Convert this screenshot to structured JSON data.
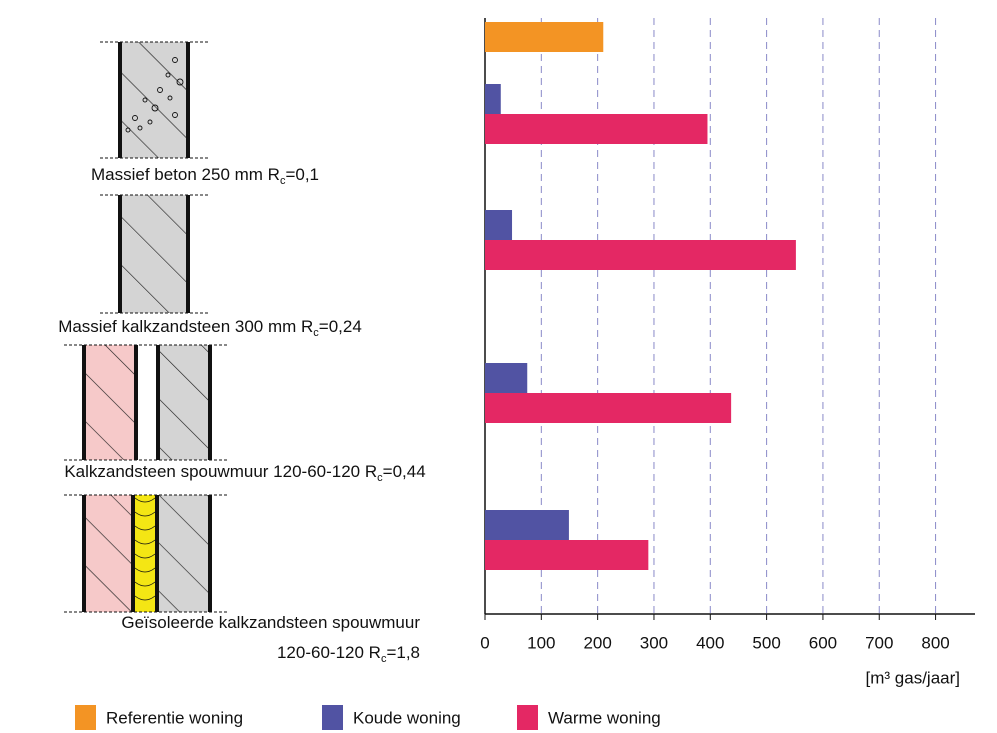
{
  "chart_data": {
    "type": "bar",
    "orientation": "horizontal",
    "categories": [
      null,
      "Massief beton 250 mm Rc=0,1",
      "Massief kalkzandsteen 300 mm Rc=0,24",
      "Kalkzandsteen spouwmuur 120-60-120 Rc=0,44",
      "Geïsoleerde kalkzandsteen spouwmuur\n120-60-120 Rc=1,8"
    ],
    "series": [
      {
        "name": "Referentie woning",
        "color": "#f39424",
        "values": [
          210,
          null,
          null,
          null,
          null
        ]
      },
      {
        "name": "Koude woning",
        "color": "#5153a3",
        "values": [
          null,
          28,
          48,
          75,
          149
        ]
      },
      {
        "name": "Warme woning",
        "color": "#e42864",
        "values": [
          null,
          395,
          552,
          437,
          290
        ]
      }
    ],
    "xlim": [
      0,
      870
    ],
    "xticks": [
      0,
      100,
      200,
      300,
      400,
      500,
      600,
      700,
      800
    ],
    "xlabel": "[m³ gas/jaar]",
    "grid": true
  }
}
